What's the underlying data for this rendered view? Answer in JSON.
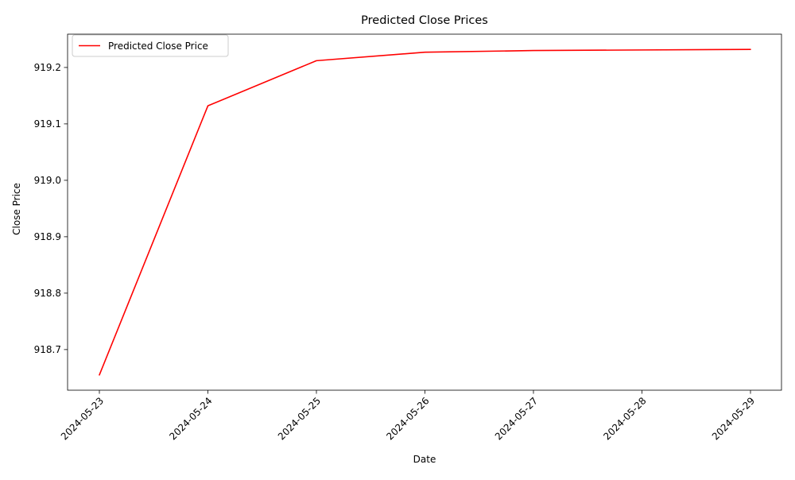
{
  "chart_data": {
    "type": "line",
    "title": "Predicted Close Prices",
    "xlabel": "Date",
    "ylabel": "Close Price",
    "x": [
      "2024-05-23",
      "2024-05-24",
      "2024-05-25",
      "2024-05-26",
      "2024-05-27",
      "2024-05-28",
      "2024-05-29"
    ],
    "series": [
      {
        "name": "Predicted Close Price",
        "color": "#ff0000",
        "values": [
          918.655,
          919.132,
          919.212,
          919.227,
          919.23,
          919.231,
          919.232
        ]
      }
    ],
    "yticks": [
      "918.7",
      "918.8",
      "918.9",
      "919.0",
      "919.1",
      "919.2"
    ],
    "ylim": [
      918.628,
      919.259
    ],
    "grid": false,
    "legend_position": "top-left"
  }
}
